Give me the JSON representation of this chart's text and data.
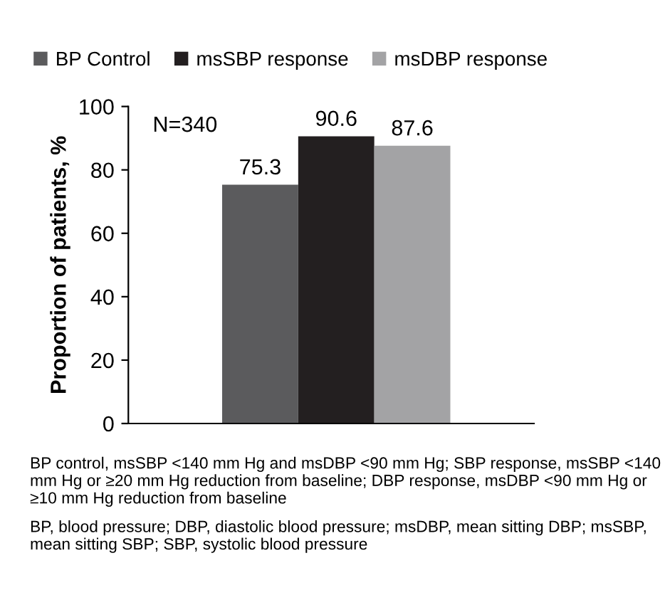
{
  "chart_data": {
    "type": "bar",
    "ylabel": "Proportion of patients, %",
    "categories": [
      null
    ],
    "series": [
      {
        "name": "BP Control",
        "color": "#5b5b5d",
        "values": [
          75.3
        ]
      },
      {
        "name": "msSBP response",
        "color": "#231f20",
        "values": [
          90.6
        ]
      },
      {
        "name": "msDBP response",
        "color": "#a3a3a5",
        "values": [
          87.6
        ]
      }
    ],
    "ylim": [
      0,
      100
    ],
    "yticks": [
      0,
      20,
      40,
      60,
      80,
      100
    ],
    "data_labels": true,
    "legend": "top",
    "grid": false,
    "annotations": [
      "N=340",
      "BP control, msSBP <140 mm Hg and msDBP <90 mm Hg; SBP response, msSBP <140 mm Hg or ≥20 mm Hg reduction from baseline; DBP response, msDBP <90 mm Hg or ≥10 mm Hg reduction from baseline",
      "BP, blood pressure; DBP, diastolic blood pressure; msDBP, mean sitting DBP; msSBP, mean sitting SBP; SBP, systolic blood pressure"
    ]
  }
}
